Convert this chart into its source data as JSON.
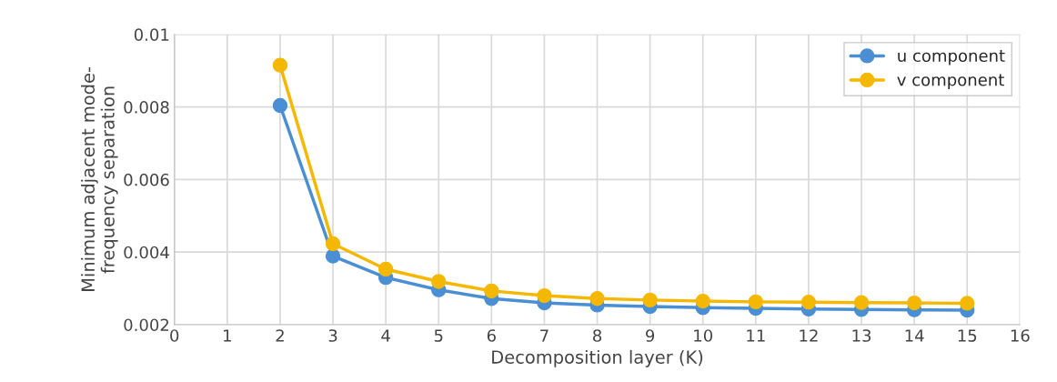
{
  "chart_data": {
    "type": "line",
    "xlabel": "Decomposition layer (K)",
    "ylabel": "Minimum adjacent mode-\nfrequency separation",
    "x": [
      2,
      3,
      4,
      5,
      6,
      7,
      8,
      9,
      10,
      11,
      12,
      13,
      14,
      15
    ],
    "series": [
      {
        "name": "u component",
        "color": "#4a8fd4",
        "values": [
          0.00804,
          0.00389,
          0.0033,
          0.00296,
          0.00272,
          0.0026,
          0.00254,
          0.0025,
          0.00247,
          0.00245,
          0.00243,
          0.00242,
          0.00241,
          0.0024
        ]
      },
      {
        "name": "v component",
        "color": "#f5b800",
        "values": [
          0.00915,
          0.00423,
          0.00353,
          0.00319,
          0.00293,
          0.0028,
          0.00272,
          0.00268,
          0.00265,
          0.00263,
          0.00262,
          0.00261,
          0.0026,
          0.00259
        ]
      }
    ],
    "xlim": [
      0,
      16
    ],
    "xticks": [
      0,
      1,
      2,
      3,
      4,
      5,
      6,
      7,
      8,
      9,
      10,
      11,
      12,
      13,
      14,
      15,
      16
    ],
    "ylim": [
      0.002,
      0.01
    ],
    "yticks": [
      {
        "value": 0.002,
        "label": "0.002"
      },
      {
        "value": 0.004,
        "label": "0.004"
      },
      {
        "value": 0.006,
        "label": "0.006"
      },
      {
        "value": 0.008,
        "label": "0.008"
      },
      {
        "value": 0.01,
        "label": "0.01"
      }
    ],
    "grid": true,
    "legend": "top right",
    "marker": "circle",
    "line_style": "solid"
  }
}
